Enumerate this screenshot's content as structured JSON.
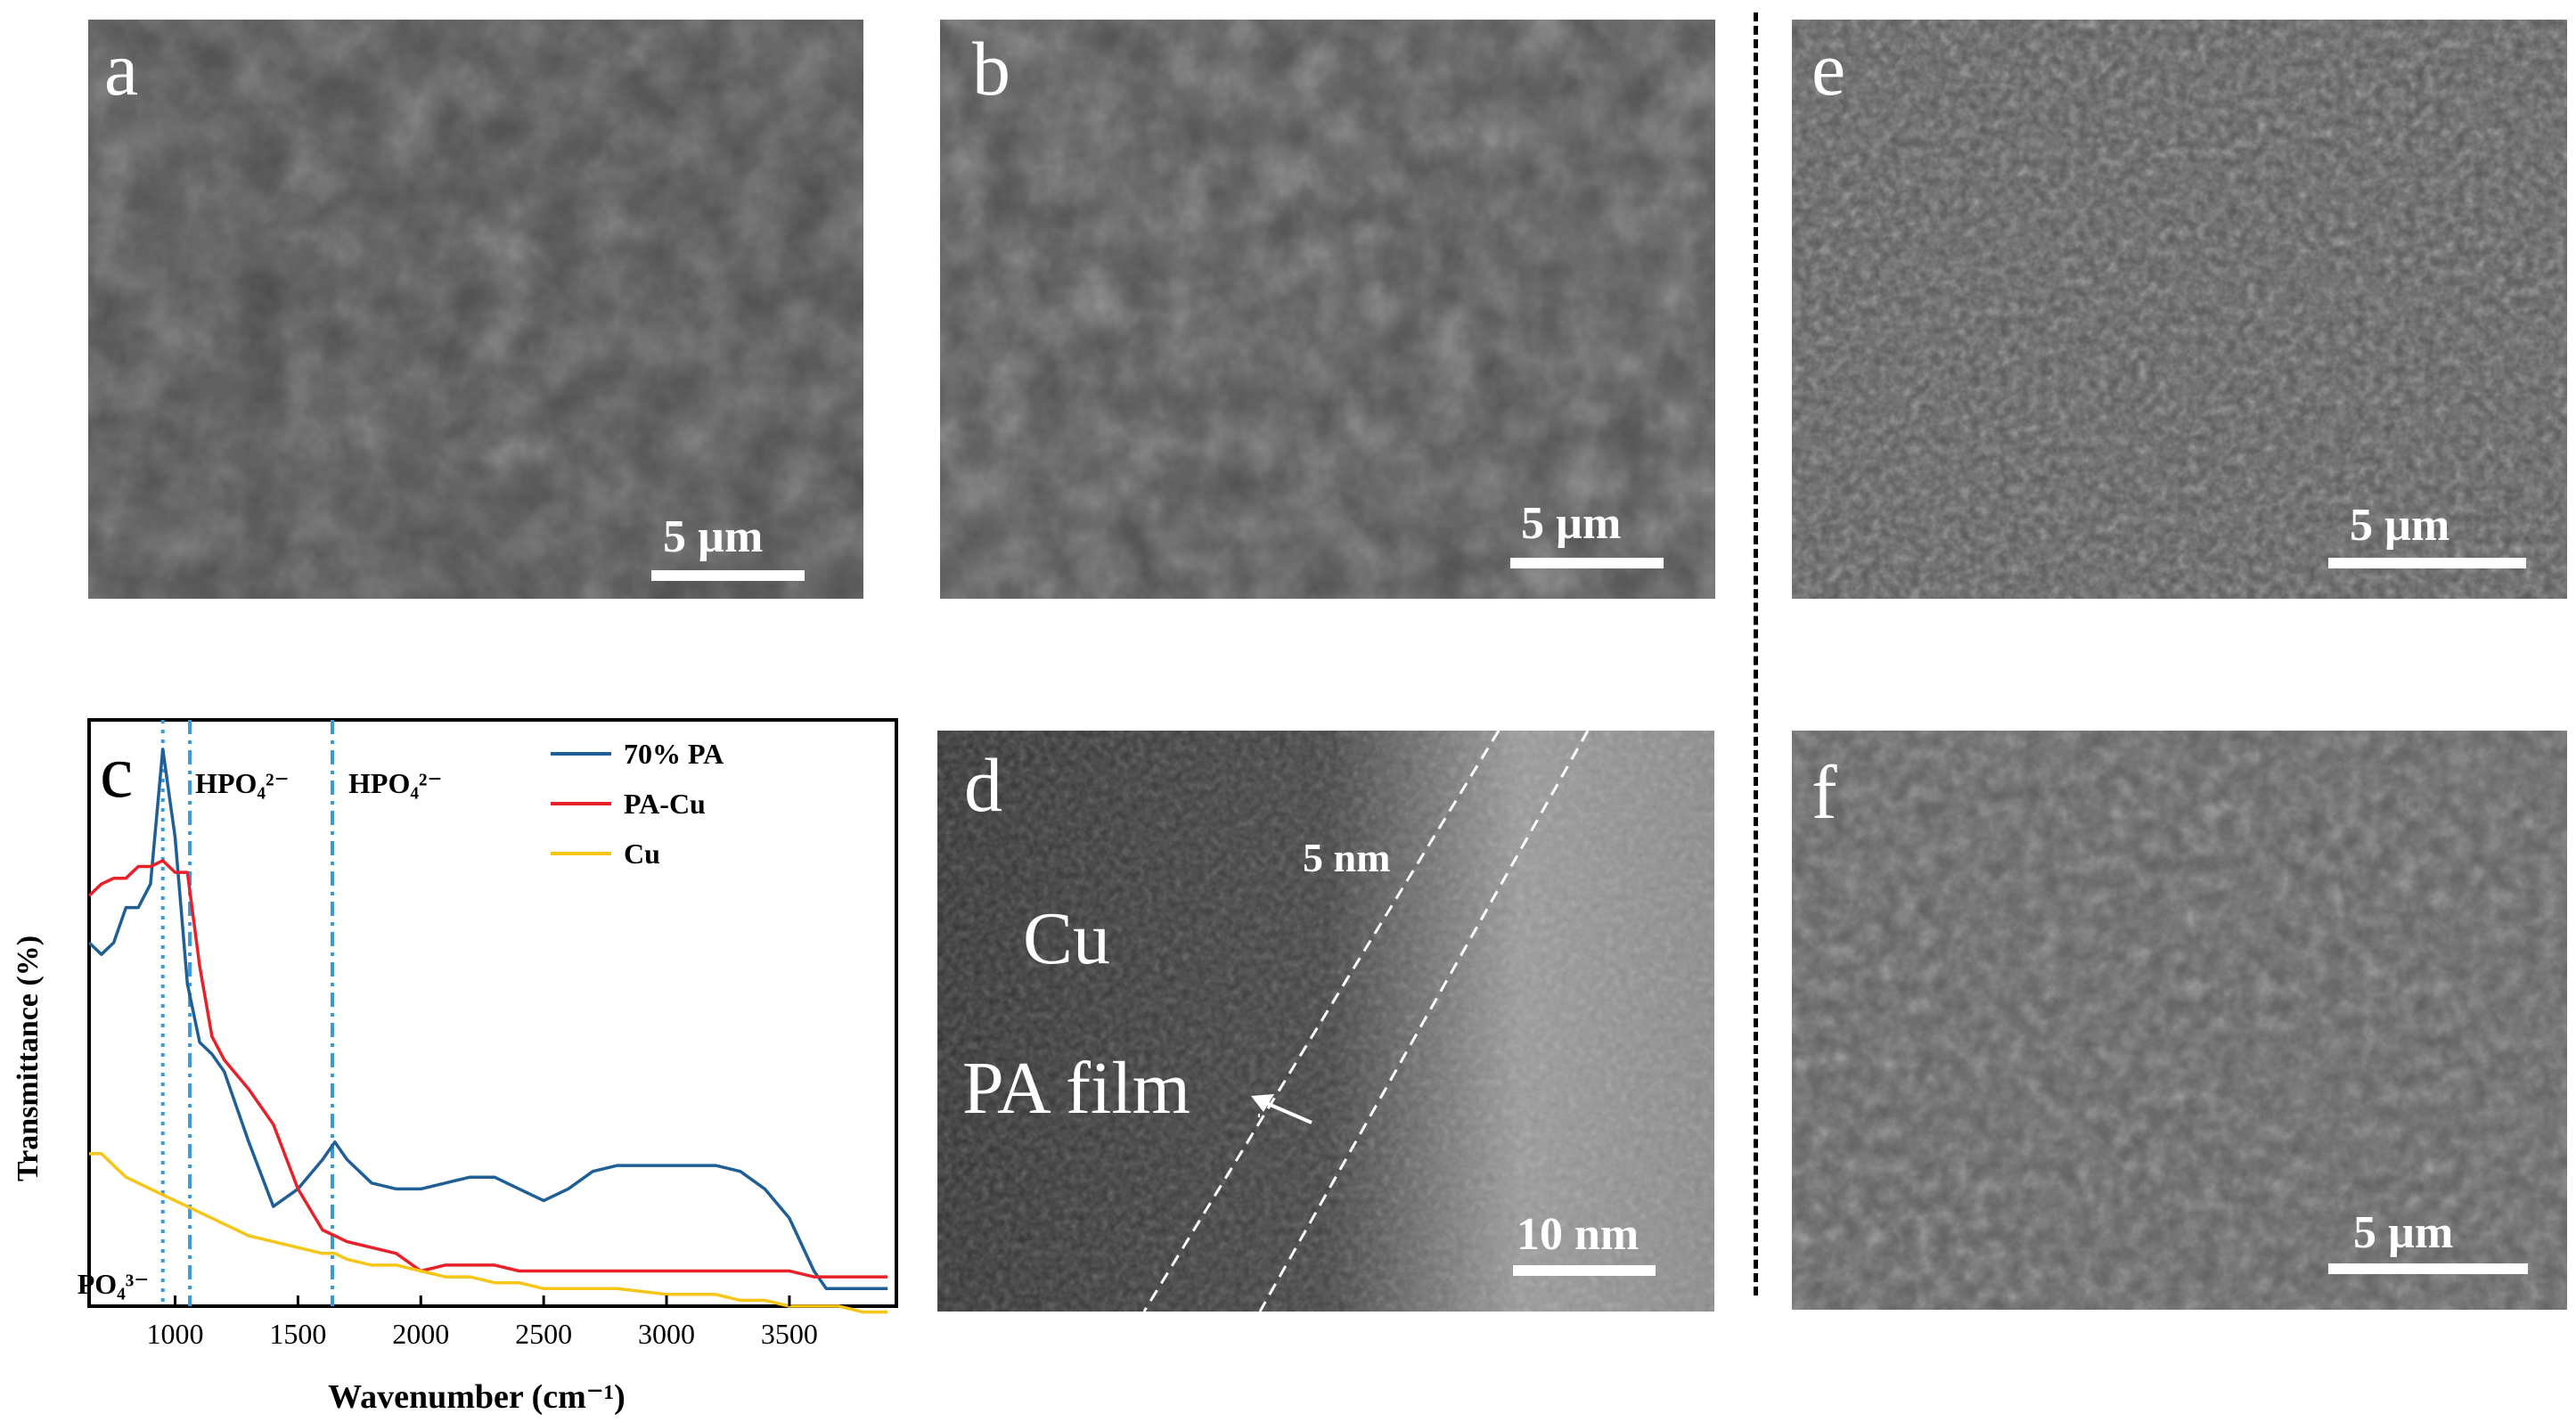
{
  "panels": {
    "a": {
      "label": "a",
      "scale": "5 µm"
    },
    "b": {
      "label": "b",
      "scale": "5 µm"
    },
    "d": {
      "label": "d",
      "scale": "10 nm",
      "annotation_cu": "Cu",
      "annotation_film": "PA film",
      "annotation_thickness": "5 nm"
    },
    "e": {
      "label": "e",
      "scale": "5 µm"
    },
    "f": {
      "label": "f",
      "scale": "5 µm"
    }
  },
  "chart_data": {
    "type": "line",
    "panel_label": "c",
    "xlabel": "Wavenumber (cm⁻¹)",
    "ylabel": "Transmittance (%)",
    "xlim": [
      650,
      3950
    ],
    "ylim": [
      0,
      100
    ],
    "xticks": [
      1000,
      1500,
      2000,
      2500,
      3000,
      3500
    ],
    "x": [
      650,
      700,
      750,
      800,
      850,
      900,
      950,
      1000,
      1050,
      1100,
      1150,
      1200,
      1300,
      1400,
      1500,
      1600,
      1650,
      1700,
      1800,
      1900,
      2000,
      2100,
      2200,
      2300,
      2400,
      2500,
      2600,
      2700,
      2800,
      3000,
      3200,
      3300,
      3400,
      3500,
      3600,
      3650,
      3700,
      3800,
      3900
    ],
    "series": [
      {
        "name": "70% PA",
        "color": "#1f5f96",
        "values": [
          62,
          60,
          62,
          68,
          68,
          72,
          95,
          80,
          55,
          45,
          43,
          40,
          28,
          17,
          20,
          25,
          28,
          25,
          21,
          20,
          20,
          21,
          22,
          22,
          20,
          18,
          20,
          23,
          24,
          24,
          24,
          23,
          20,
          15,
          6,
          3,
          3,
          3,
          3
        ]
      },
      {
        "name": "PA-Cu",
        "color": "#e8202a",
        "values": [
          70,
          72,
          73,
          73,
          75,
          75,
          76,
          74,
          74,
          58,
          46,
          42,
          37,
          31,
          20,
          13,
          12,
          11,
          10,
          9,
          6,
          7,
          7,
          7,
          6,
          6,
          6,
          6,
          6,
          6,
          6,
          6,
          6,
          6,
          5,
          5,
          5,
          5,
          5
        ]
      },
      {
        "name": "Cu",
        "color": "#f5c518",
        "values": [
          26,
          26,
          24,
          22,
          21,
          20,
          19,
          18,
          17,
          16,
          15,
          14,
          12,
          11,
          10,
          9,
          9,
          8,
          7,
          7,
          6,
          5,
          5,
          4,
          4,
          3,
          3,
          3,
          3,
          2,
          2,
          1,
          1,
          0,
          0,
          0,
          0,
          -1,
          -1
        ]
      }
    ],
    "reference_lines": [
      {
        "x": 950,
        "style": "dotted",
        "label": "PO₄³⁻"
      },
      {
        "x": 1060,
        "style": "dash-dot",
        "label": "HPO₄²⁻"
      },
      {
        "x": 1640,
        "style": "dash-dot",
        "label": "HPO₄²⁻"
      }
    ],
    "legend_position": "top-right"
  }
}
